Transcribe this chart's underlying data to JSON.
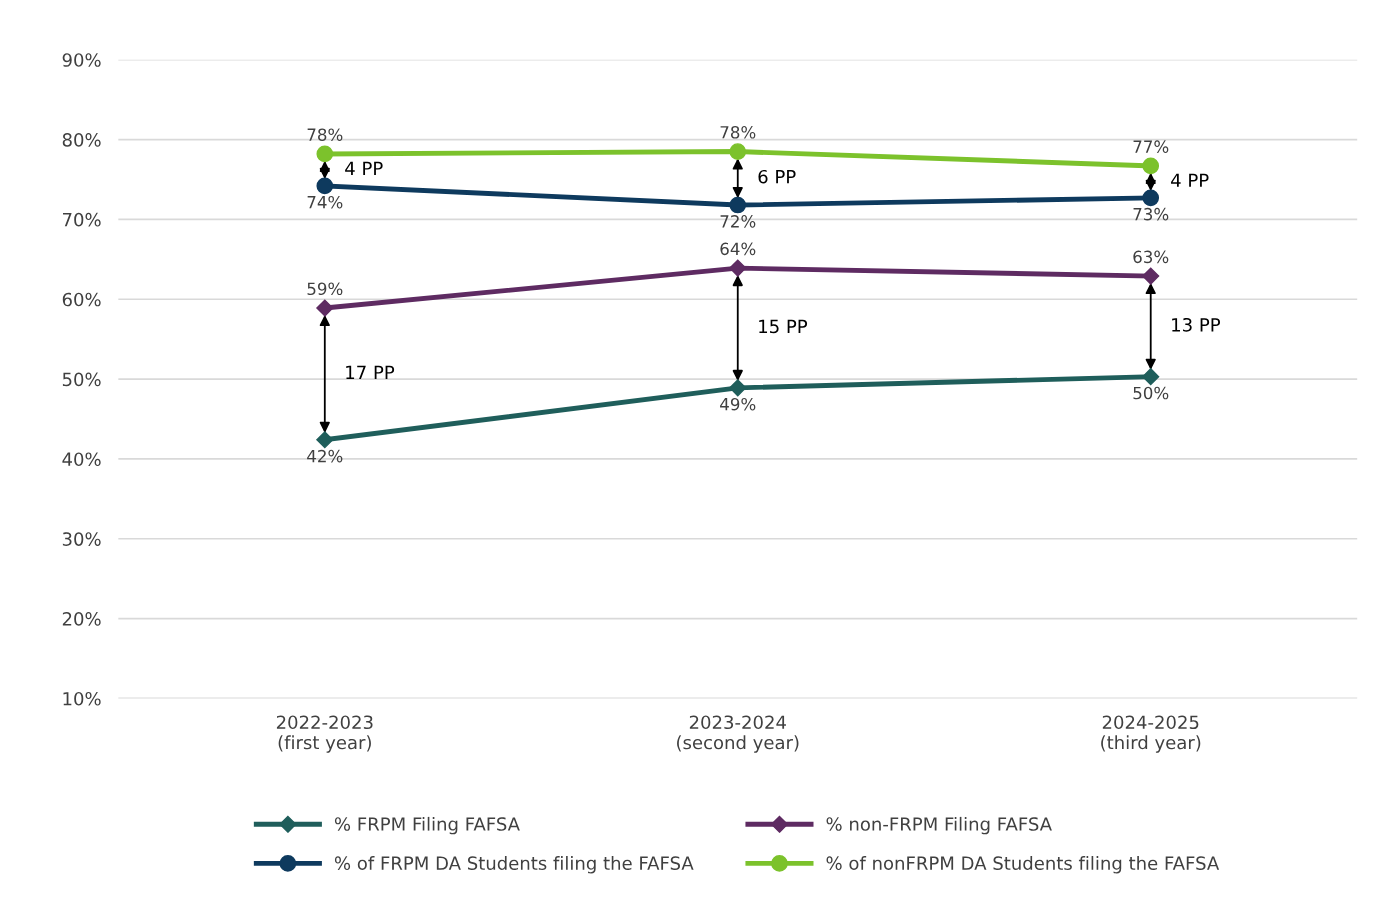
{
  "chart_data": {
    "type": "line",
    "categories": [
      "2022-2023\n(first year)",
      "2023-2024\n(second year)",
      "2024-2025\n(third year)"
    ],
    "series": [
      {
        "name": "% FRPM Filing FAFSA",
        "color": "#1f5e5b",
        "marker": "diamond",
        "values": [
          42.4,
          48.9,
          50.3
        ],
        "value_labels": [
          "42%",
          "49%",
          "50%"
        ]
      },
      {
        "name": "% non-FRPM Filing FAFSA",
        "color": "#5e2b62",
        "marker": "diamond",
        "values": [
          58.9,
          63.9,
          62.9
        ],
        "value_labels": [
          "59%",
          "64%",
          "63%"
        ]
      },
      {
        "name": "% of FRPM DA Students filing the FAFSA",
        "color": "#0e3a5e",
        "marker": "circle",
        "values": [
          74.2,
          71.8,
          72.7
        ],
        "value_labels": [
          "74%",
          "72%",
          "73%"
        ]
      },
      {
        "name": "% of nonFRPM DA Students filing the FAFSA",
        "color": "#7cc22c",
        "marker": "circle",
        "values": [
          78.2,
          78.5,
          76.7
        ],
        "value_labels": [
          "78%",
          "78%",
          "77%"
        ]
      }
    ],
    "ylim": [
      10,
      90
    ],
    "yticks": [
      {
        "value": 10,
        "label": "10%"
      },
      {
        "value": 20,
        "label": "20%"
      },
      {
        "value": 30,
        "label": "30%"
      },
      {
        "value": 40,
        "label": "40%"
      },
      {
        "value": 50,
        "label": "50%"
      },
      {
        "value": 60,
        "label": "60%"
      },
      {
        "value": 70,
        "label": "70%"
      },
      {
        "value": 80,
        "label": "80%"
      },
      {
        "value": 90,
        "label": "90%"
      }
    ],
    "grid": "y",
    "legend": "bottom",
    "annotations": [
      "17 PP",
      "15 PP",
      "13 PP",
      "4 PP",
      "6 PP",
      "4 PP"
    ]
  }
}
